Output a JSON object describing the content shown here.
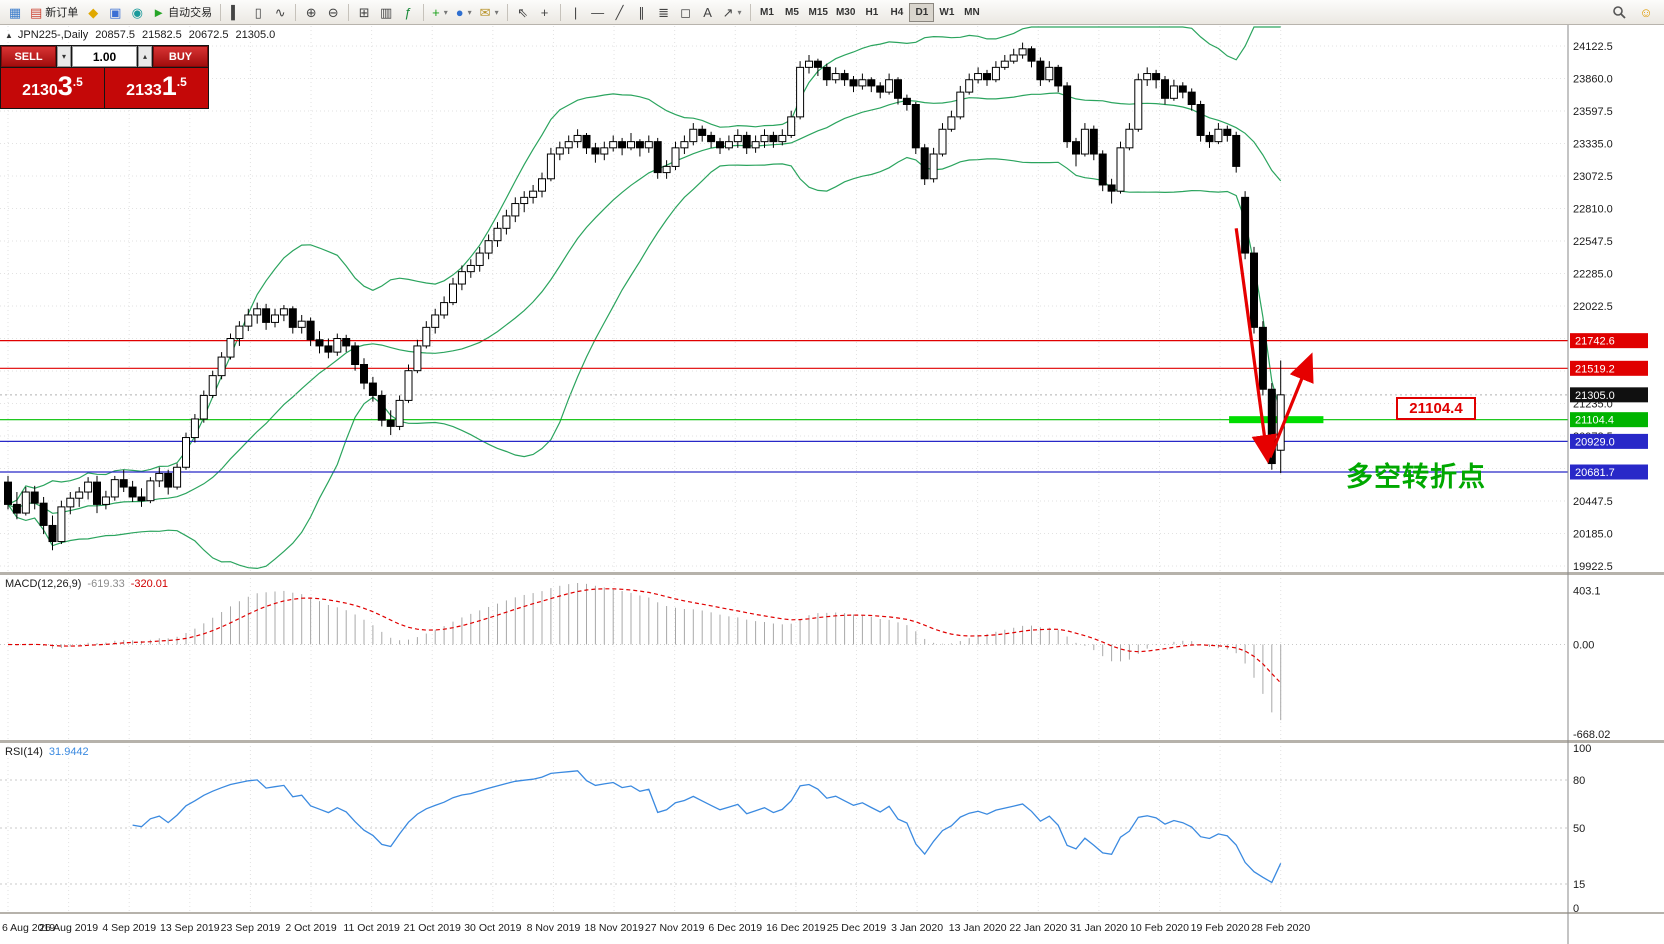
{
  "toolbar": {
    "groups": [
      {
        "items": [
          {
            "name": "new-chart-button",
            "glyph": "▦",
            "color": "#3a7ccb"
          },
          {
            "name": "new-order-button",
            "glyph": "▤",
            "color": "#cc4433",
            "label": "新订单"
          },
          {
            "name": "metaeditor-button",
            "glyph": "◆",
            "color": "#e0a800"
          },
          {
            "name": "market-watch-button",
            "glyph": "▣",
            "color": "#3b6fd4"
          },
          {
            "name": "navigator-button",
            "glyph": "◉",
            "color": "#1a9a9a"
          },
          {
            "name": "autotrading-button",
            "glyph": "►",
            "color": "#27a527",
            "label": "自动交易"
          }
        ]
      },
      {
        "items": [
          {
            "name": "bar-chart-button",
            "glyph": "▍"
          },
          {
            "name": "candlestick-chart-button",
            "glyph": "▯"
          },
          {
            "name": "line-chart-button",
            "glyph": "∿"
          }
        ]
      },
      {
        "items": [
          {
            "name": "zoom-in-button",
            "glyph": "⊕"
          },
          {
            "name": "zoom-out-button",
            "glyph": "⊖"
          }
        ]
      },
      {
        "items": [
          {
            "name": "auto-scroll-button",
            "glyph": "⊞"
          },
          {
            "name": "chart-shift-button",
            "glyph": "▥"
          },
          {
            "name": "indicators-button",
            "glyph": "ƒ",
            "color": "#1a8a3a"
          }
        ]
      },
      {
        "items": [
          {
            "name": "add-indicator-dropdown",
            "glyph": "+",
            "color": "#18a018",
            "caret": true
          },
          {
            "name": "periods-dropdown",
            "glyph": "●",
            "color": "#2f6fd0",
            "caret": true
          },
          {
            "name": "templates-dropdown",
            "glyph": "✉",
            "color": "#b8932a",
            "caret": true
          }
        ]
      },
      {
        "items": [
          {
            "name": "cursor-tool",
            "glyph": "⇖"
          },
          {
            "name": "crosshair-tool",
            "glyph": "+"
          }
        ]
      },
      {
        "items": [
          {
            "name": "vertical-line-tool",
            "glyph": "|"
          },
          {
            "name": "horizontal-line-tool",
            "glyph": "—"
          },
          {
            "name": "trendline-tool",
            "glyph": "╱"
          },
          {
            "name": "channel-tool",
            "glyph": "∥"
          },
          {
            "name": "fibonacci-tool",
            "glyph": "≣"
          },
          {
            "name": "shapes-tool",
            "glyph": "◻"
          },
          {
            "name": "text-tool",
            "glyph": "A"
          },
          {
            "name": "arrow-tool",
            "glyph": "↗",
            "caret": true
          }
        ]
      }
    ],
    "timeframes": [
      "M1",
      "M5",
      "M15",
      "M30",
      "H1",
      "H4",
      "D1",
      "W1",
      "MN"
    ],
    "active_timeframe": "D1",
    "right_icons": [
      {
        "name": "search-button"
      },
      {
        "name": "help-button",
        "glyph": "☺",
        "color": "#e09a00"
      }
    ]
  },
  "symbol_line": {
    "collapse_glyph": "▲",
    "symbol": "JPN225-,Daily",
    "open": "20857.5",
    "high": "21582.5",
    "low": "20672.5",
    "close": "21305.0"
  },
  "trade_panel": {
    "sell_label": "SELL",
    "buy_label": "BUY",
    "volume": "1.00",
    "vol_down_glyph": "▾",
    "vol_up_glyph": "▴",
    "sell_price": "21303.5",
    "buy_price": "21331.5",
    "sell_base": "2130",
    "sell_big": "3",
    "sell_sup": ".5",
    "buy_base": "2133",
    "buy_big": "1",
    "buy_sup": ".5"
  },
  "price_scale": {
    "tick_labels": [
      "24122.5",
      "23860.0",
      "23597.5",
      "23335.0",
      "23072.5",
      "22810.0",
      "22547.5",
      "22285.0",
      "22022.5",
      "21760.0",
      "21497.5",
      "21235.0",
      "20972.5",
      "20710.0",
      "20447.5",
      "20185.0",
      "19922.5"
    ],
    "tags": [
      {
        "text": "21742.6",
        "price": 21742.6,
        "bg": "#e00000"
      },
      {
        "text": "21519.2",
        "price": 21519.2,
        "bg": "#e00000"
      },
      {
        "text": "21305.0",
        "price": 21305.0,
        "bg": "#101010"
      },
      {
        "text": "21104.4",
        "price": 21104.4,
        "bg": "#00b400"
      },
      {
        "text": "20929.0",
        "price": 20929.0,
        "bg": "#2828c8"
      },
      {
        "text": "20681.7",
        "price": 20681.7,
        "bg": "#2828c8"
      }
    ]
  },
  "hlines": [
    {
      "price": 21742.6,
      "color": "#e00000"
    },
    {
      "price": 21519.2,
      "color": "#e00000"
    },
    {
      "price": 21104.4,
      "color": "#00c000"
    },
    {
      "price": 20929.0,
      "color": "#2828c8"
    },
    {
      "price": 20681.7,
      "color": "#2828c8"
    }
  ],
  "bid_line": {
    "price": 21305.0,
    "color": "#b0b0b0"
  },
  "annotations": {
    "turning_point_text": "多空转折点",
    "text_color": "#00a800",
    "price_label": "21104.4",
    "callout_color": "#e00000",
    "arrow_color": "#e60000",
    "highlight_color": "#00dd00",
    "highlight_bar": {
      "price": 21104.4,
      "bar_start": 137.2,
      "bar_end": 147.8
    },
    "arrows": [
      {
        "from_bar": 138.0,
        "from_price": 22650,
        "to_bar": 141.5,
        "to_price": 20800
      },
      {
        "from_bar": 141.8,
        "from_price": 20800,
        "to_bar": 146.3,
        "to_price": 21600
      }
    ]
  },
  "macd_panel": {
    "title": "MACD(12,26,9)",
    "value_main": "-619.33",
    "value_signal": "-320.01"
  },
  "rsi_panel": {
    "title": "RSI(14)",
    "value": "31.9442"
  },
  "chart_data": {
    "type": "candlestick",
    "symbol": "JPN225-",
    "timeframe": "Daily",
    "ylim": [
      19922.5,
      24122.5
    ],
    "grid_step": 262.5,
    "dates": [
      "6 Aug 2019",
      "26 Aug 2019",
      "4 Sep 2019",
      "13 Sep 2019",
      "23 Sep 2019",
      "2 Oct 2019",
      "11 Oct 2019",
      "21 Oct 2019",
      "30 Oct 2019",
      "8 Nov 2019",
      "18 Nov 2019",
      "27 Nov 2019",
      "6 Dec 2019",
      "16 Dec 2019",
      "25 Dec 2019",
      "3 Jan 2020",
      "13 Jan 2020",
      "22 Jan 2020",
      "31 Jan 2020",
      "10 Feb 2020",
      "19 Feb 2020",
      "28 Feb 2020"
    ],
    "candles": [
      [
        20600,
        20650,
        20380,
        20420
      ],
      [
        20420,
        20520,
        20300,
        20350
      ],
      [
        20350,
        20560,
        20330,
        20520
      ],
      [
        20520,
        20570,
        20380,
        20430
      ],
      [
        20430,
        20480,
        20180,
        20250
      ],
      [
        20250,
        20330,
        20050,
        20120
      ],
      [
        20120,
        20450,
        20100,
        20400
      ],
      [
        20400,
        20520,
        20340,
        20470
      ],
      [
        20470,
        20560,
        20400,
        20520
      ],
      [
        20520,
        20640,
        20460,
        20600
      ],
      [
        20600,
        20650,
        20350,
        20420
      ],
      [
        20420,
        20530,
        20380,
        20480
      ],
      [
        20480,
        20650,
        20450,
        20620
      ],
      [
        20620,
        20700,
        20520,
        20560
      ],
      [
        20560,
        20610,
        20440,
        20480
      ],
      [
        20480,
        20550,
        20400,
        20450
      ],
      [
        20450,
        20640,
        20430,
        20610
      ],
      [
        20610,
        20720,
        20560,
        20670
      ],
      [
        20670,
        20700,
        20500,
        20560
      ],
      [
        20560,
        20750,
        20540,
        20720
      ],
      [
        20720,
        21000,
        20700,
        20960
      ],
      [
        20960,
        21150,
        20920,
        21110
      ],
      [
        21110,
        21340,
        21080,
        21300
      ],
      [
        21300,
        21500,
        21280,
        21460
      ],
      [
        21460,
        21650,
        21430,
        21610
      ],
      [
        21610,
        21800,
        21590,
        21760
      ],
      [
        21760,
        21900,
        21700,
        21860
      ],
      [
        21860,
        22000,
        21820,
        21950
      ],
      [
        21950,
        22050,
        21880,
        22000
      ],
      [
        22000,
        22040,
        21830,
        21890
      ],
      [
        21890,
        22000,
        21850,
        21950
      ],
      [
        21950,
        22030,
        21900,
        22000
      ],
      [
        22000,
        22020,
        21800,
        21850
      ],
      [
        21850,
        21950,
        21800,
        21900
      ],
      [
        21900,
        21930,
        21700,
        21750
      ],
      [
        21750,
        21820,
        21640,
        21700
      ],
      [
        21700,
        21760,
        21600,
        21650
      ],
      [
        21650,
        21800,
        21620,
        21760
      ],
      [
        21760,
        21790,
        21650,
        21700
      ],
      [
        21700,
        21730,
        21500,
        21550
      ],
      [
        21550,
        21600,
        21350,
        21400
      ],
      [
        21400,
        21450,
        21250,
        21300
      ],
      [
        21300,
        21340,
        21050,
        21100
      ],
      [
        21100,
        21180,
        20980,
        21050
      ],
      [
        21050,
        21300,
        21020,
        21260
      ],
      [
        21260,
        21550,
        21240,
        21500
      ],
      [
        21500,
        21750,
        21480,
        21700
      ],
      [
        21700,
        21900,
        21680,
        21850
      ],
      [
        21850,
        22000,
        21800,
        21950
      ],
      [
        21950,
        22100,
        21920,
        22050
      ],
      [
        22050,
        22250,
        22030,
        22200
      ],
      [
        22200,
        22350,
        22150,
        22300
      ],
      [
        22300,
        22400,
        22250,
        22350
      ],
      [
        22350,
        22500,
        22300,
        22450
      ],
      [
        22450,
        22600,
        22400,
        22550
      ],
      [
        22550,
        22700,
        22500,
        22650
      ],
      [
        22650,
        22800,
        22600,
        22750
      ],
      [
        22750,
        22900,
        22700,
        22850
      ],
      [
        22850,
        22950,
        22780,
        22900
      ],
      [
        22900,
        23000,
        22850,
        22950
      ],
      [
        22950,
        23100,
        22900,
        23050
      ],
      [
        23050,
        23300,
        23030,
        23250
      ],
      [
        23250,
        23350,
        23200,
        23300
      ],
      [
        23300,
        23400,
        23250,
        23350
      ],
      [
        23350,
        23450,
        23300,
        23400
      ],
      [
        23400,
        23420,
        23250,
        23300
      ],
      [
        23300,
        23340,
        23180,
        23250
      ],
      [
        23250,
        23350,
        23200,
        23300
      ],
      [
        23300,
        23400,
        23270,
        23350
      ],
      [
        23350,
        23380,
        23240,
        23300
      ],
      [
        23300,
        23420,
        23280,
        23350
      ],
      [
        23350,
        23370,
        23230,
        23300
      ],
      [
        23300,
        23400,
        23260,
        23350
      ],
      [
        23350,
        23380,
        23050,
        23100
      ],
      [
        23100,
        23200,
        23050,
        23150
      ],
      [
        23150,
        23350,
        23120,
        23300
      ],
      [
        23300,
        23400,
        23250,
        23350
      ],
      [
        23350,
        23500,
        23320,
        23450
      ],
      [
        23450,
        23480,
        23350,
        23400
      ],
      [
        23400,
        23430,
        23300,
        23350
      ],
      [
        23350,
        23380,
        23250,
        23300
      ],
      [
        23300,
        23400,
        23280,
        23350
      ],
      [
        23350,
        23450,
        23300,
        23400
      ],
      [
        23400,
        23430,
        23250,
        23300
      ],
      [
        23300,
        23400,
        23260,
        23350
      ],
      [
        23350,
        23450,
        23300,
        23400
      ],
      [
        23400,
        23430,
        23300,
        23350
      ],
      [
        23350,
        23450,
        23320,
        23400
      ],
      [
        23400,
        23600,
        23380,
        23550
      ],
      [
        23550,
        24000,
        23530,
        23950
      ],
      [
        23950,
        24050,
        23900,
        24000
      ],
      [
        24000,
        24020,
        23880,
        23950
      ],
      [
        23950,
        23980,
        23800,
        23850
      ],
      [
        23850,
        23950,
        23820,
        23900
      ],
      [
        23900,
        23930,
        23800,
        23850
      ],
      [
        23850,
        23880,
        23750,
        23800
      ],
      [
        23800,
        23900,
        23770,
        23850
      ],
      [
        23850,
        23870,
        23750,
        23800
      ],
      [
        23800,
        23830,
        23700,
        23750
      ],
      [
        23750,
        23900,
        23730,
        23850
      ],
      [
        23850,
        23870,
        23650,
        23700
      ],
      [
        23700,
        23730,
        23600,
        23650
      ],
      [
        23650,
        23670,
        23250,
        23300
      ],
      [
        23300,
        23330,
        23000,
        23050
      ],
      [
        23050,
        23300,
        23020,
        23250
      ],
      [
        23250,
        23500,
        23230,
        23450
      ],
      [
        23450,
        23600,
        23430,
        23550
      ],
      [
        23550,
        23800,
        23530,
        23750
      ],
      [
        23750,
        23900,
        23730,
        23850
      ],
      [
        23850,
        23950,
        23820,
        23900
      ],
      [
        23900,
        23930,
        23800,
        23850
      ],
      [
        23850,
        24000,
        23830,
        23950
      ],
      [
        23950,
        24050,
        23930,
        24000
      ],
      [
        24000,
        24100,
        23980,
        24050
      ],
      [
        24050,
        24150,
        24020,
        24100
      ],
      [
        24100,
        24120,
        23950,
        24000
      ],
      [
        24000,
        24030,
        23800,
        23850
      ],
      [
        23850,
        24000,
        23830,
        23950
      ],
      [
        23950,
        23970,
        23750,
        23800
      ],
      [
        23800,
        23830,
        23300,
        23350
      ],
      [
        23350,
        23380,
        23150,
        23250
      ],
      [
        23250,
        23500,
        23230,
        23450
      ],
      [
        23450,
        23480,
        23200,
        23250
      ],
      [
        23250,
        23280,
        22950,
        23000
      ],
      [
        23000,
        23050,
        22850,
        22950
      ],
      [
        22950,
        23350,
        22930,
        23300
      ],
      [
        23300,
        23500,
        23280,
        23450
      ],
      [
        23450,
        23900,
        23430,
        23850
      ],
      [
        23850,
        23950,
        23800,
        23900
      ],
      [
        23900,
        23930,
        23780,
        23850
      ],
      [
        23850,
        23880,
        23650,
        23700
      ],
      [
        23700,
        23850,
        23680,
        23800
      ],
      [
        23800,
        23830,
        23700,
        23750
      ],
      [
        23750,
        23780,
        23600,
        23650
      ],
      [
        23650,
        23680,
        23350,
        23400
      ],
      [
        23400,
        23430,
        23300,
        23350
      ],
      [
        23350,
        23500,
        23330,
        23450
      ],
      [
        23450,
        23480,
        23350,
        23400
      ],
      [
        23400,
        23430,
        23100,
        23150
      ],
      [
        22900,
        22950,
        22400,
        22450
      ],
      [
        22450,
        22500,
        21800,
        21850
      ],
      [
        21850,
        21900,
        21300,
        21350
      ],
      [
        21350,
        21400,
        20700,
        20750
      ],
      [
        20857.5,
        21582.5,
        20672.5,
        21305.0
      ]
    ],
    "indicators": {
      "bollinger": {
        "period": 20,
        "deviation": 2,
        "color": "#2ba45e"
      },
      "macd": {
        "fast": 12,
        "slow": 26,
        "signal": 9,
        "histogram_color": "#a8a8a8",
        "signal_color": "#e00000",
        "scale_top": "403.1",
        "scale_zero": "0.00",
        "scale_bottom": "-668.02"
      },
      "rsi": {
        "period": 14,
        "color": "#3b8ae0",
        "levels": [
          80,
          50,
          15
        ],
        "scale": [
          "100",
          "80",
          "50",
          "15",
          "0"
        ]
      }
    }
  }
}
